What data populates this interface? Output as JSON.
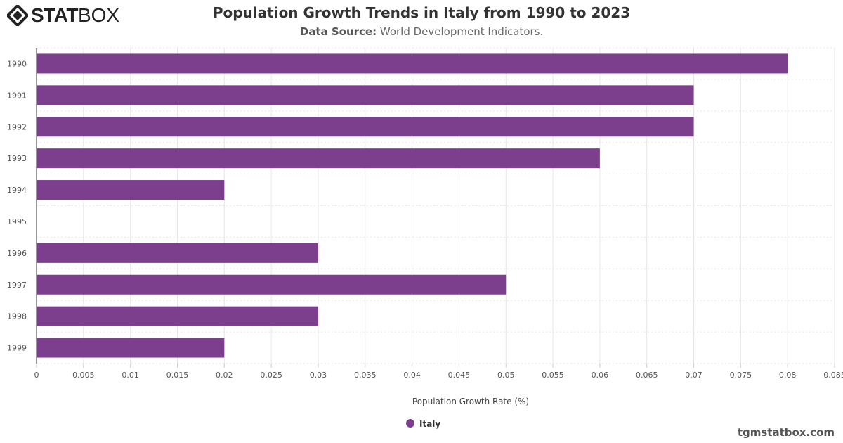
{
  "logo": {
    "part1": "STAT",
    "part2": "BOX"
  },
  "header": {
    "title": "Population Growth Trends in Italy from 1990 to 2023",
    "source_label": "Data Source:",
    "source_value": "World Development Indicators."
  },
  "credit": "tgmstatbox.com",
  "chart_data": {
    "type": "bar",
    "orientation": "horizontal",
    "categories": [
      "1990",
      "1991",
      "1992",
      "1993",
      "1994",
      "1995",
      "1996",
      "1997",
      "1998",
      "1999"
    ],
    "series": [
      {
        "name": "Italy",
        "values": [
          0.08,
          0.07,
          0.07,
          0.06,
          0.02,
          0,
          0.03,
          0.05,
          0.03,
          0.02
        ],
        "color": "#7b3f8e"
      }
    ],
    "xlabel": "Population Growth Rate (%)",
    "xlim": [
      0,
      0.085
    ],
    "xticks": [
      "0",
      "0.005",
      "0.01",
      "0.015",
      "0.02",
      "0.025",
      "0.03",
      "0.035",
      "0.04",
      "0.045",
      "0.05",
      "0.055",
      "0.06",
      "0.065",
      "0.07",
      "0.075",
      "0.08",
      "0.085"
    ],
    "grid": true,
    "legend": "bottom-center"
  }
}
